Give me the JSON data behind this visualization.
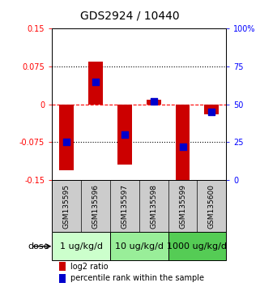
{
  "title": "GDS2924 / 10440",
  "samples": [
    "GSM135595",
    "GSM135596",
    "GSM135597",
    "GSM135598",
    "GSM135599",
    "GSM135600"
  ],
  "log2_ratios": [
    -0.13,
    0.085,
    -0.12,
    0.01,
    -0.155,
    -0.02
  ],
  "percentile_ranks": [
    25,
    65,
    30,
    52,
    22,
    45
  ],
  "ylim_left": [
    -0.15,
    0.15
  ],
  "ylim_right": [
    0,
    100
  ],
  "yticks_left": [
    -0.15,
    -0.075,
    0,
    0.075,
    0.15
  ],
  "yticks_right": [
    0,
    25,
    50,
    75,
    100
  ],
  "ytick_labels_left": [
    "-0.15",
    "-0.075",
    "0",
    "0.075",
    "0.15"
  ],
  "ytick_labels_right": [
    "0",
    "25",
    "50",
    "75",
    "100%"
  ],
  "hlines": [
    -0.075,
    0,
    0.075
  ],
  "hline_styles": [
    "dotted",
    "dashed",
    "dotted"
  ],
  "hline_colors": [
    "black",
    "red",
    "black"
  ],
  "bar_color": "#cc0000",
  "dot_color": "#0000cc",
  "bar_width": 0.5,
  "dot_size": 30,
  "doses": [
    {
      "label": "1 ug/kg/d",
      "color": "#ccffcc",
      "start": 0,
      "end": 1
    },
    {
      "label": "10 ug/kg/d",
      "color": "#99ee99",
      "start": 2,
      "end": 3
    },
    {
      "label": "1000 ug/kg/d",
      "color": "#55cc55",
      "start": 4,
      "end": 5
    }
  ],
  "dose_label": "dose",
  "legend_red": "log2 ratio",
  "legend_blue": "percentile rank within the sample",
  "bg_color_plot": "#ffffff",
  "bg_color_samples": "#cccccc",
  "title_fontsize": 10,
  "tick_fontsize": 7,
  "sample_fontsize": 6.5,
  "dose_fontsize": 8,
  "legend_fontsize": 7
}
